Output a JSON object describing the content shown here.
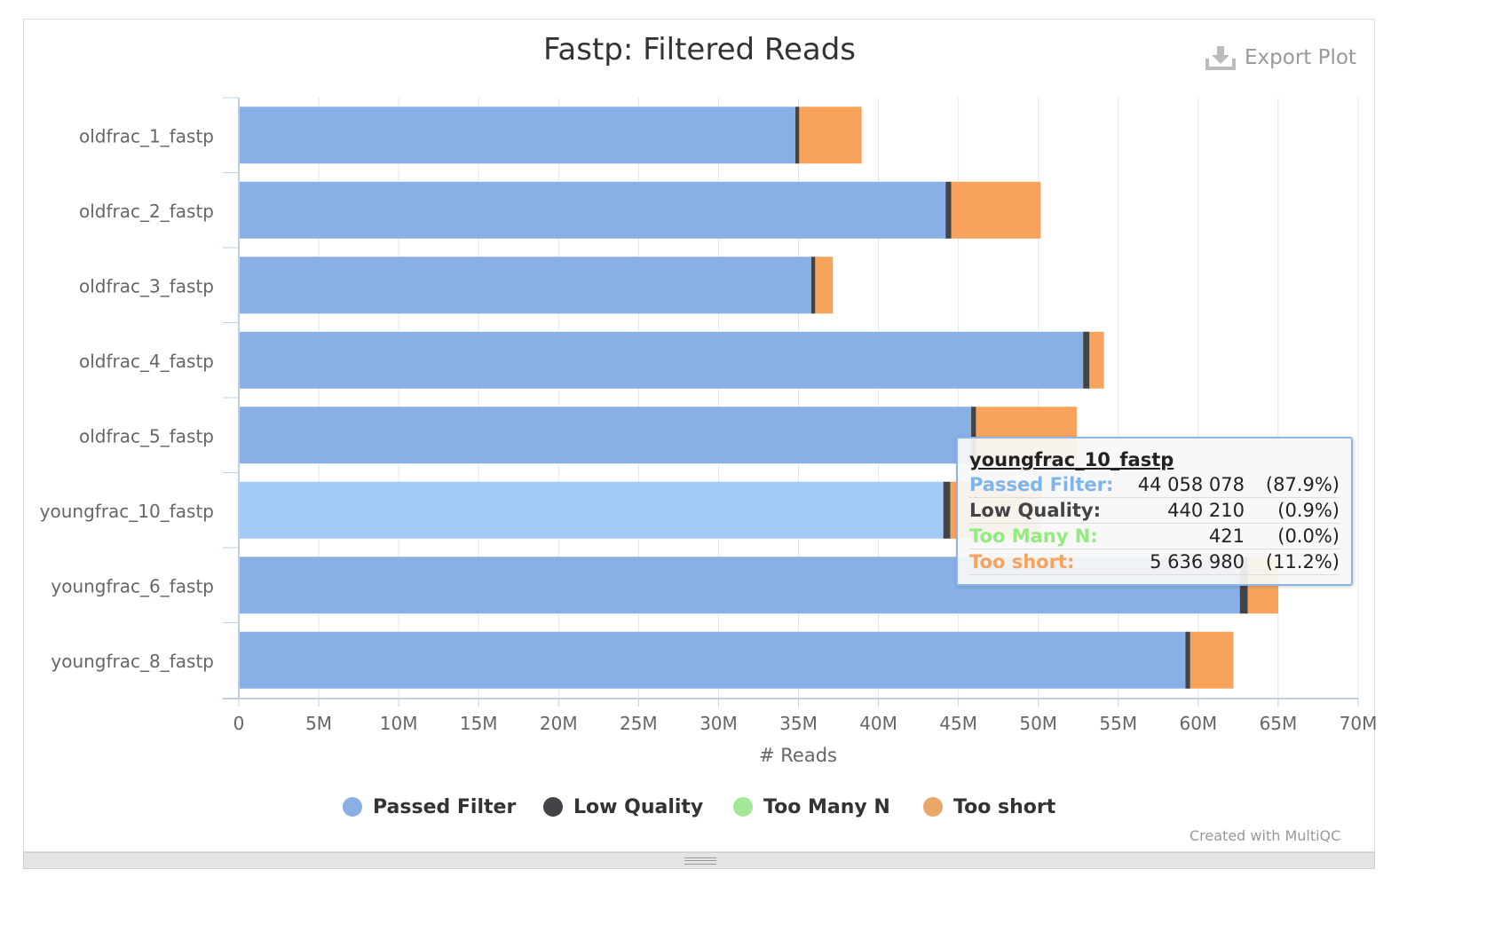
{
  "chart_data": {
    "type": "bar",
    "orientation": "horizontal",
    "stacked": true,
    "title": "Fastp: Filtered Reads",
    "xlabel": "# Reads",
    "xlim": [
      0,
      70000000
    ],
    "x_ticks": [
      "0",
      "5M",
      "10M",
      "15M",
      "20M",
      "25M",
      "30M",
      "35M",
      "40M",
      "45M",
      "50M",
      "55M",
      "60M",
      "65M",
      "70M"
    ],
    "grid": true,
    "legend_position": "bottom",
    "categories": [
      "oldfrac_1_fastp",
      "oldfrac_2_fastp",
      "oldfrac_3_fastp",
      "oldfrac_4_fastp",
      "oldfrac_5_fastp",
      "youngfrac_10_fastp",
      "youngfrac_6_fastp",
      "youngfrac_8_fastp"
    ],
    "series": [
      {
        "name": "Passed Filter",
        "color": "#88b0e5",
        "values": [
          34800000,
          44200000,
          35800000,
          52800000,
          45800000,
          44058078,
          62600000,
          59200000
        ]
      },
      {
        "name": "Low Quality",
        "color": "#434348",
        "values": [
          250000,
          350000,
          250000,
          400000,
          300000,
          440210,
          500000,
          300000
        ]
      },
      {
        "name": "Too Many N",
        "color": "#90ed7d",
        "values": [
          500,
          500,
          500,
          500,
          500,
          421,
          500,
          500
        ]
      },
      {
        "name": "Too short",
        "color": "#f7a35c",
        "values": [
          3900000,
          5600000,
          1100000,
          900000,
          6300000,
          5636980,
          1900000,
          2700000
        ]
      }
    ],
    "highlighted_category": "youngfrac_10_fastp",
    "highlight_color": "#a3cbf7"
  },
  "export_label": "Export Plot",
  "export_icon": "download-icon",
  "credit": "Created with MultiQC",
  "tooltip": {
    "title": "youngfrac_10_fastp",
    "rows": [
      {
        "label": "Passed Filter:",
        "value": "44 058 078",
        "pct": "(87.9%)",
        "color": "#7cb5ec"
      },
      {
        "label": "Low Quality:",
        "value": "440 210",
        "pct": "(0.9%)",
        "color": "#434348"
      },
      {
        "label": "Too Many N:",
        "value": "421",
        "pct": "(0.0%)",
        "color": "#90ed7d"
      },
      {
        "label": "Too short:",
        "value": "5 636 980",
        "pct": "(11.2%)",
        "color": "#f7a35c"
      }
    ]
  }
}
